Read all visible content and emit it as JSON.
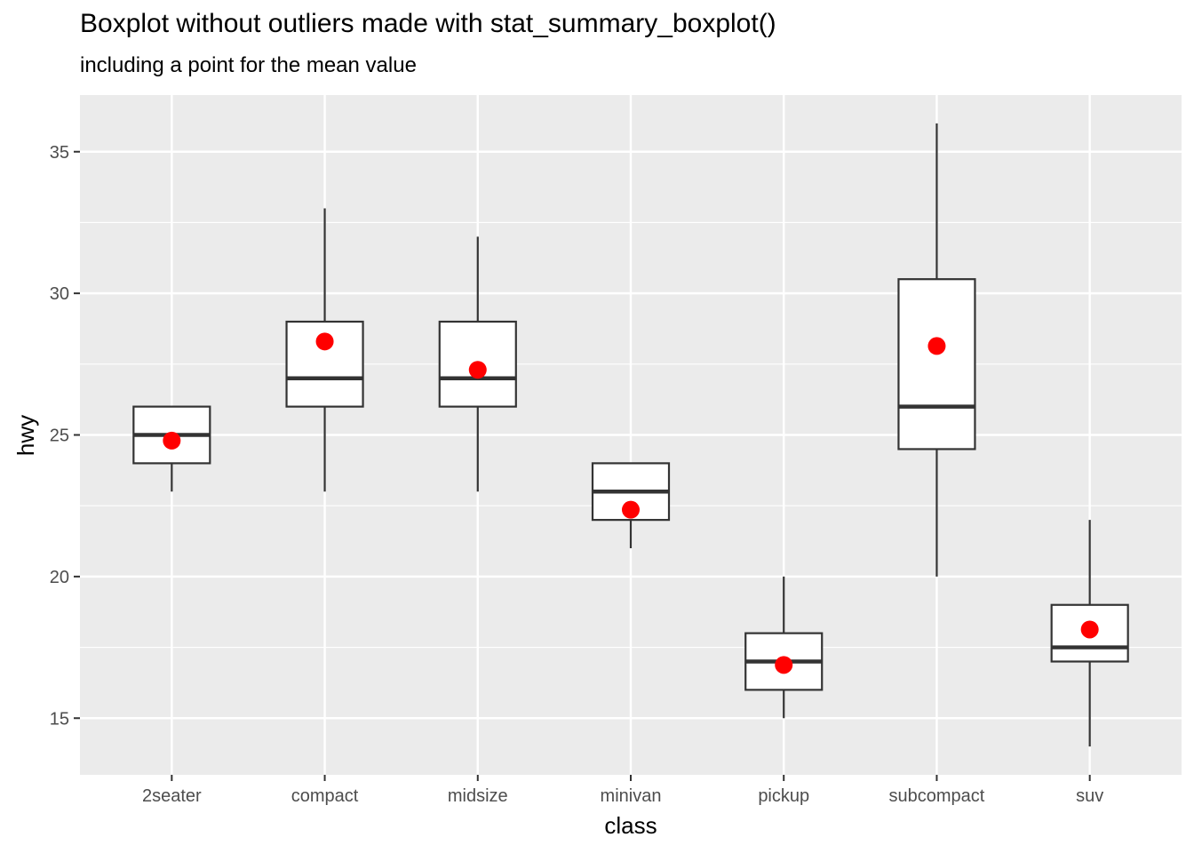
{
  "chart_data": {
    "type": "boxplot",
    "title": "Boxplot without outliers made with stat_summary_boxplot()",
    "subtitle": "including a point for the mean value",
    "xlabel": "class",
    "ylabel": "hwy",
    "ylim": [
      13,
      37
    ],
    "yticks": [
      15,
      20,
      25,
      30,
      35
    ],
    "categories": [
      "2seater",
      "compact",
      "midsize",
      "minivan",
      "pickup",
      "subcompact",
      "suv"
    ],
    "boxes": [
      {
        "category": "2seater",
        "ymin": 23,
        "lower": 24,
        "middle": 25,
        "upper": 26,
        "ymax": 26,
        "mean": 24.8
      },
      {
        "category": "compact",
        "ymin": 23,
        "lower": 26,
        "middle": 27,
        "upper": 29,
        "ymax": 33,
        "mean": 28.3
      },
      {
        "category": "midsize",
        "ymin": 23,
        "lower": 26,
        "middle": 27,
        "upper": 29,
        "ymax": 32,
        "mean": 27.3
      },
      {
        "category": "minivan",
        "ymin": 21,
        "lower": 22,
        "middle": 23,
        "upper": 24,
        "ymax": 24,
        "mean": 22.36
      },
      {
        "category": "pickup",
        "ymin": 15,
        "lower": 16,
        "middle": 17,
        "upper": 18,
        "ymax": 20,
        "mean": 16.88
      },
      {
        "category": "subcompact",
        "ymin": 20,
        "lower": 24.5,
        "middle": 26,
        "upper": 30.5,
        "ymax": 36,
        "mean": 28.14
      },
      {
        "category": "suv",
        "ymin": 14,
        "lower": 17,
        "middle": 17.5,
        "upper": 19,
        "ymax": 22,
        "mean": 18.13
      }
    ],
    "grid": true,
    "legend": "none",
    "colors": {
      "panel_background": "#ebebeb",
      "grid": "#ffffff",
      "box_fill": "#ffffff",
      "box_line": "#333333",
      "mean_point": "#ff0000"
    }
  }
}
